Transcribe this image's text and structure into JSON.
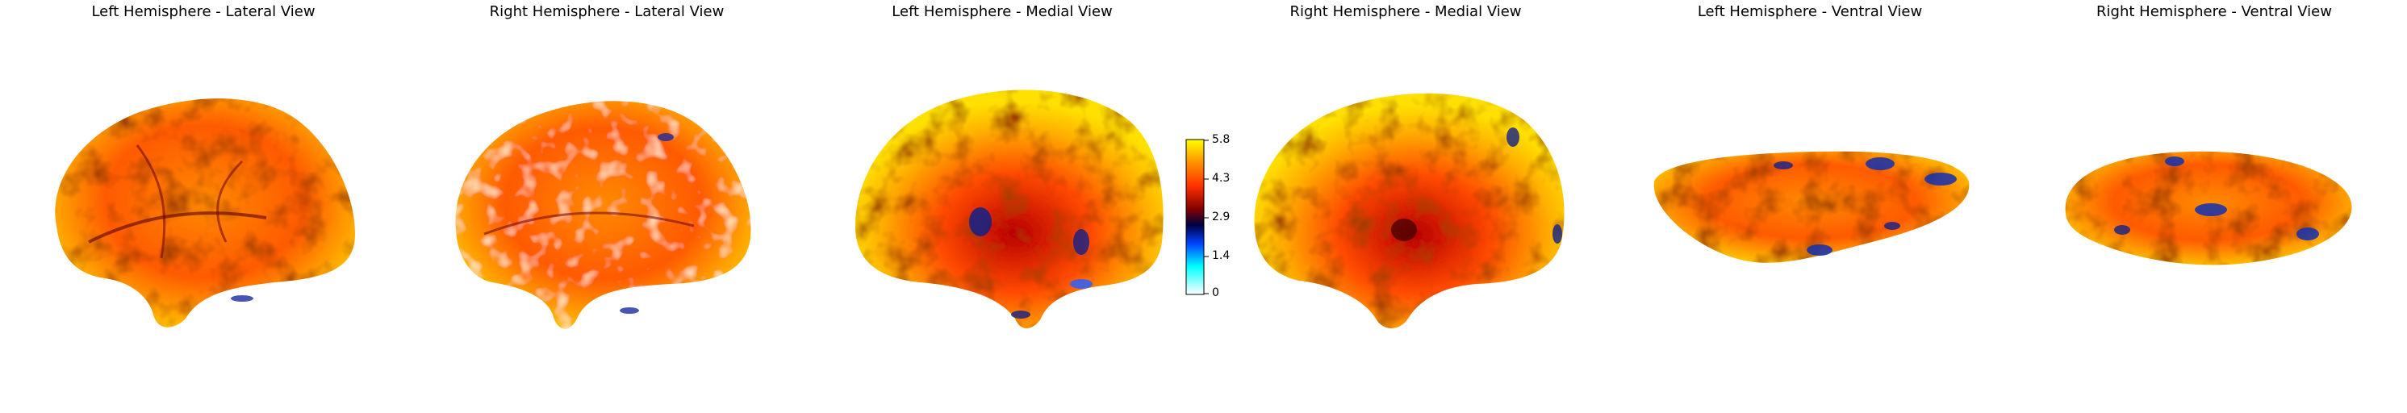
{
  "panels": [
    {
      "title": "Left Hemisphere - Lateral View"
    },
    {
      "title": "Right Hemisphere - Lateral View"
    },
    {
      "title": "Left Hemisphere - Medial View"
    },
    {
      "title": "Right Hemisphere - Medial View"
    },
    {
      "title": "Left Hemisphere - Ventral View"
    },
    {
      "title": "Right Hemisphere - Ventral View"
    }
  ],
  "colorbar": {
    "ticks": [
      "5.8",
      "4.3",
      "2.9",
      "1.4",
      "0"
    ],
    "colormap": [
      "#ffffff",
      "#00ffff",
      "#0040ff",
      "#000040",
      "#800000",
      "#ff3000",
      "#ff9000",
      "#ffff00"
    ]
  }
}
